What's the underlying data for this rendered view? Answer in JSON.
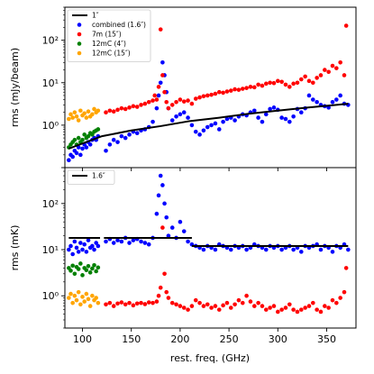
{
  "chart_data": {
    "type": "scatter",
    "x_axis": {
      "label": "rest. freq. (GHz)",
      "range": [
        82,
        380
      ],
      "ticks": [
        100,
        150,
        200,
        250,
        300,
        350
      ],
      "tick_labels": [
        "100",
        "150",
        "200",
        "250",
        "300",
        "350"
      ]
    },
    "panels": [
      {
        "name": "top",
        "ylabel": "rms (mJy/beam)",
        "yscale": "log",
        "ylim": [
          0.1,
          600
        ],
        "yticks": [
          1,
          10,
          100
        ],
        "ytick_labels": [
          "10⁰",
          "10¹",
          "10²"
        ],
        "legend_position": "upper left",
        "legend": [
          {
            "label": "1″",
            "color": "#000000",
            "kind": "line"
          },
          {
            "label": "combined (1.6″)",
            "color": "#0000ff",
            "kind": "marker"
          },
          {
            "label": "7m (15″)",
            "color": "#ff0000",
            "kind": "marker"
          },
          {
            "label": "12mC (4″)",
            "color": "#008000",
            "kind": "marker"
          },
          {
            "label": "12mC (15″)",
            "color": "#ffa500",
            "kind": "marker"
          }
        ],
        "reference_line": {
          "label": "1″",
          "x": [
            86,
            120,
            150,
            180,
            210,
            240,
            270,
            300,
            330,
            360,
            372
          ],
          "y": [
            0.28,
            0.55,
            0.75,
            0.95,
            1.25,
            1.5,
            1.85,
            2.2,
            2.6,
            3.0,
            3.2
          ]
        },
        "series": [
          {
            "name": "combined (1.6″)",
            "color": "#0000ff",
            "x": [
              86,
              88,
              90,
              92,
              94,
              96,
              98,
              100,
              102,
              104,
              106,
              108,
              110,
              112,
              114,
              116,
              124,
              128,
              132,
              136,
              140,
              144,
              148,
              152,
              156,
              160,
              164,
              168,
              172,
              176,
              178,
              180,
              182,
              184,
              186,
              188,
              192,
              196,
              200,
              204,
              208,
              212,
              216,
              220,
              224,
              228,
              232,
              236,
              240,
              244,
              248,
              252,
              256,
              260,
              264,
              268,
              272,
              276,
              280,
              284,
              288,
              292,
              296,
              300,
              304,
              308,
              312,
              316,
              320,
              324,
              328,
              332,
              336,
              340,
              344,
              348,
              352,
              356,
              360,
              364,
              368,
              372
            ],
            "y": [
              0.15,
              0.2,
              0.18,
              0.25,
              0.22,
              0.3,
              0.2,
              0.28,
              0.35,
              0.3,
              0.4,
              0.35,
              0.45,
              0.5,
              0.45,
              0.55,
              0.25,
              0.35,
              0.45,
              0.4,
              0.55,
              0.5,
              0.6,
              0.7,
              0.65,
              0.75,
              0.8,
              0.9,
              1.2,
              2.5,
              5,
              10,
              30,
              15,
              6,
              2.5,
              1.3,
              1.6,
              1.8,
              2.0,
              1.5,
              1.0,
              0.7,
              0.6,
              0.75,
              0.9,
              1.0,
              1.1,
              0.8,
              1.2,
              1.4,
              1.5,
              1.3,
              1.6,
              1.8,
              1.7,
              2.0,
              2.2,
              1.5,
              1.2,
              1.8,
              2.4,
              2.6,
              2.3,
              1.5,
              1.4,
              1.2,
              1.6,
              2.4,
              2.0,
              2.5,
              5.0,
              4.0,
              3.5,
              3.0,
              2.8,
              2.6,
              3.5,
              4.0,
              5.0,
              3.2,
              3.0
            ]
          },
          {
            "name": "7m (15″)",
            "color": "#ff0000",
            "x": [
              124,
              128,
              132,
              136,
              140,
              144,
              148,
              152,
              156,
              160,
              164,
              168,
              172,
              174,
              176,
              178,
              180,
              182,
              184,
              186,
              188,
              192,
              196,
              200,
              204,
              208,
              212,
              216,
              220,
              224,
              228,
              232,
              236,
              240,
              244,
              248,
              252,
              256,
              260,
              264,
              268,
              272,
              276,
              280,
              284,
              288,
              292,
              296,
              300,
              304,
              308,
              312,
              316,
              320,
              324,
              328,
              332,
              336,
              340,
              344,
              348,
              352,
              356,
              360,
              364,
              368,
              370
            ],
            "y": [
              2.0,
              2.2,
              2.1,
              2.3,
              2.5,
              2.4,
              2.6,
              2.8,
              2.7,
              3.0,
              3.2,
              3.5,
              3.8,
              5.0,
              4.0,
              8.0,
              180,
              15,
              6.0,
              3.5,
              2.5,
              3.0,
              3.5,
              4.0,
              3.6,
              3.8,
              3.2,
              4.2,
              4.5,
              4.8,
              5.0,
              5.2,
              5.5,
              6.0,
              5.8,
              6.2,
              6.5,
              7.0,
              6.8,
              7.2,
              7.5,
              8.0,
              7.8,
              9.0,
              8.5,
              9.5,
              10,
              9.8,
              11,
              10.5,
              9.0,
              8.0,
              9.5,
              10,
              12,
              14,
              11,
              10,
              13,
              15,
              20,
              18,
              25,
              22,
              30,
              15,
              220
            ]
          },
          {
            "name": "12mC (4″)",
            "color": "#008000",
            "x": [
              86,
              88,
              90,
              92,
              94,
              96,
              98,
              100,
              102,
              104,
              106,
              108,
              110,
              112,
              114,
              116
            ],
            "y": [
              0.3,
              0.35,
              0.4,
              0.45,
              0.35,
              0.5,
              0.4,
              0.45,
              0.6,
              0.5,
              0.55,
              0.65,
              0.6,
              0.7,
              0.75,
              0.8
            ]
          },
          {
            "name": "12mC (15″)",
            "color": "#ffa500",
            "x": [
              86,
              88,
              90,
              92,
              94,
              96,
              98,
              100,
              102,
              104,
              106,
              108,
              110,
              112,
              114,
              116
            ],
            "y": [
              1.4,
              1.8,
              1.5,
              2.0,
              1.6,
              1.3,
              2.2,
              1.7,
              1.9,
              1.5,
              2.1,
              1.6,
              1.8,
              2.4,
              2.0,
              2.2
            ]
          }
        ]
      },
      {
        "name": "bottom",
        "ylabel": "rms (mK)",
        "yscale": "log",
        "ylim": [
          0.2,
          600
        ],
        "yticks": [
          1,
          10,
          100
        ],
        "ytick_labels": [
          "10⁰",
          "10¹",
          "10²"
        ],
        "legend_position": "upper left",
        "legend": [
          {
            "label": "1.6″",
            "color": "#000000",
            "kind": "line"
          }
        ],
        "reference_segments": [
          {
            "x": [
              86,
              118
            ],
            "y": 18
          },
          {
            "x": [
              122,
              212
            ],
            "y": 18
          },
          {
            "x": [
              212,
              372
            ],
            "y": 12
          }
        ],
        "series": [
          {
            "name": "combined (1.6″)",
            "color": "#0000ff",
            "x": [
              86,
              88,
              90,
              92,
              94,
              96,
              98,
              100,
              102,
              104,
              106,
              108,
              110,
              112,
              114,
              116,
              124,
              128,
              132,
              136,
              140,
              144,
              148,
              152,
              156,
              160,
              164,
              168,
              172,
              176,
              178,
              180,
              182,
              184,
              186,
              188,
              192,
              196,
              200,
              204,
              208,
              212,
              216,
              220,
              224,
              228,
              232,
              236,
              240,
              244,
              248,
              252,
              256,
              260,
              264,
              268,
              272,
              276,
              280,
              284,
              288,
              292,
              296,
              300,
              304,
              308,
              312,
              316,
              320,
              324,
              328,
              332,
              336,
              340,
              344,
              348,
              352,
              356,
              360,
              364,
              368,
              372
            ],
            "y": [
              10,
              12,
              8,
              15,
              11,
              9,
              14,
              10,
              13,
              9,
              16,
              11,
              12,
              10,
              14,
              12,
              15,
              17,
              14,
              16,
              15,
              18,
              14,
              16,
              17,
              15,
              14,
              13,
              18,
              60,
              150,
              400,
              250,
              100,
              50,
              20,
              30,
              18,
              40,
              25,
              15,
              13,
              12,
              11,
              10,
              12,
              11,
              10,
              13,
              12,
              11,
              10,
              12,
              11,
              12,
              10,
              11,
              13,
              12,
              11,
              10,
              12,
              11,
              12,
              10,
              11,
              12,
              10,
              11,
              9,
              12,
              11,
              12,
              13,
              10,
              12,
              11,
              9,
              12,
              11,
              13,
              10
            ]
          },
          {
            "name": "7m (15″)",
            "color": "#ff0000",
            "x": [
              124,
              128,
              132,
              136,
              140,
              144,
              148,
              152,
              156,
              160,
              164,
              168,
              172,
              176,
              178,
              180,
              182,
              184,
              186,
              188,
              192,
              196,
              200,
              204,
              208,
              212,
              216,
              220,
              224,
              228,
              232,
              236,
              240,
              244,
              248,
              252,
              256,
              260,
              264,
              268,
              272,
              276,
              280,
              284,
              288,
              292,
              296,
              300,
              304,
              308,
              312,
              316,
              320,
              324,
              328,
              332,
              336,
              340,
              344,
              348,
              352,
              356,
              360,
              364,
              368,
              370
            ],
            "y": [
              0.65,
              0.7,
              0.6,
              0.68,
              0.72,
              0.65,
              0.7,
              0.62,
              0.68,
              0.7,
              0.66,
              0.72,
              0.7,
              0.75,
              1.0,
              1.5,
              30,
              3.0,
              1.2,
              0.9,
              0.7,
              0.65,
              0.6,
              0.55,
              0.5,
              0.6,
              0.8,
              0.7,
              0.6,
              0.65,
              0.55,
              0.6,
              0.5,
              0.62,
              0.7,
              0.55,
              0.65,
              0.8,
              0.7,
              1.0,
              0.75,
              0.6,
              0.7,
              0.6,
              0.5,
              0.55,
              0.6,
              0.45,
              0.5,
              0.55,
              0.65,
              0.5,
              0.45,
              0.5,
              0.55,
              0.6,
              0.7,
              0.5,
              0.45,
              0.6,
              0.55,
              0.8,
              0.7,
              0.9,
              1.2,
              4.0
            ]
          },
          {
            "name": "12mC (4″)",
            "color": "#008000",
            "x": [
              86,
              88,
              90,
              92,
              94,
              96,
              98,
              100,
              102,
              104,
              106,
              108,
              110,
              112,
              114,
              116
            ],
            "y": [
              4.0,
              3.5,
              4.5,
              3.0,
              4.2,
              3.8,
              5.0,
              2.8,
              4.0,
              3.6,
              4.4,
              3.2,
              3.9,
              4.6,
              3.4,
              4.1
            ]
          },
          {
            "name": "12mC (15″)",
            "color": "#ffa500",
            "x": [
              86,
              88,
              90,
              92,
              94,
              96,
              98,
              100,
              102,
              104,
              106,
              108,
              110,
              112,
              114,
              116
            ],
            "y": [
              0.9,
              1.1,
              0.7,
              1.0,
              0.8,
              1.2,
              0.65,
              0.95,
              0.75,
              1.1,
              0.85,
              0.6,
              1.0,
              0.8,
              0.9,
              0.7
            ]
          }
        ]
      }
    ]
  }
}
